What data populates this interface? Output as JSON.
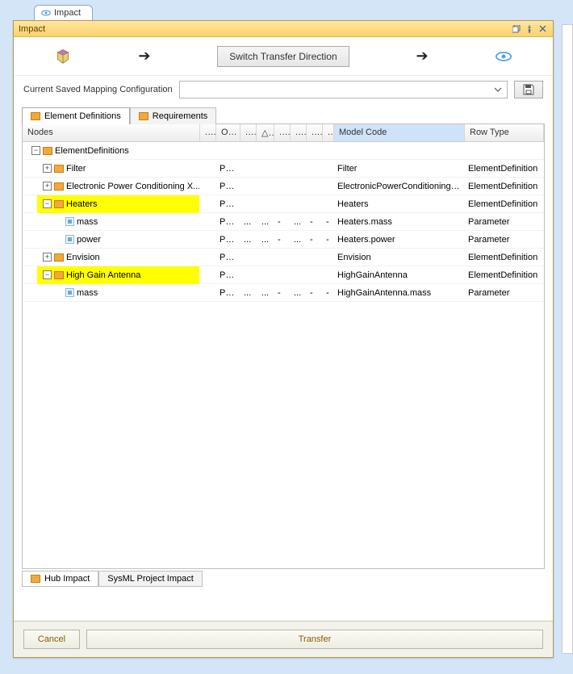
{
  "outer_tab": {
    "label": "Impact"
  },
  "window": {
    "title": "Impact",
    "switch_button": "Switch Transfer Direction",
    "config_label": "Current Saved Mapping Configuration",
    "config_value": ""
  },
  "inner_tabs": {
    "active": "Element Definitions",
    "t0": "Element Definitions",
    "t1": "Requirements"
  },
  "grid": {
    "headers": {
      "nodes": "Nodes",
      "n1": "...",
      "owner": "O...",
      "n2": "...",
      "sort": "△..",
      "n3": "...",
      "n4": "...",
      "n5": "...",
      "n6": "...",
      "model_code": "Model Code",
      "row_type": "Row Type"
    },
    "rows": [
      {
        "level": 0,
        "expander": "−",
        "icon": "pkg",
        "label": "ElementDefinitions",
        "owner": "",
        "dots": false,
        "model": "",
        "rowtype": "",
        "hl": false
      },
      {
        "level": 1,
        "expander": "+",
        "icon": "pkg",
        "label": "Filter",
        "owner": "PWR",
        "dots": false,
        "model": "Filter",
        "rowtype": "ElementDefinition",
        "hl": false
      },
      {
        "level": 1,
        "expander": "+",
        "icon": "pkg",
        "label": "Electronic Power Conditioning X...",
        "owner": "PWR",
        "dots": false,
        "model": "ElectronicPowerConditioningXb...",
        "rowtype": "ElementDefinition",
        "hl": false
      },
      {
        "level": 1,
        "expander": "−",
        "icon": "pkg",
        "label": "Heaters",
        "owner": "PWR",
        "dots": false,
        "model": "Heaters",
        "rowtype": "ElementDefinition",
        "hl": true
      },
      {
        "level": 2,
        "expander": "",
        "icon": "field",
        "label": "mass",
        "owner": "PWR",
        "dots": true,
        "model": "Heaters.mass",
        "rowtype": "Parameter",
        "hl": false
      },
      {
        "level": 2,
        "expander": "",
        "icon": "field",
        "label": "power",
        "owner": "PWR",
        "dots": true,
        "model": "Heaters.power",
        "rowtype": "Parameter",
        "hl": false
      },
      {
        "level": 1,
        "expander": "+",
        "icon": "pkg",
        "label": "Envision",
        "owner": "PWR",
        "dots": false,
        "model": "Envision",
        "rowtype": "ElementDefinition",
        "hl": false
      },
      {
        "level": 1,
        "expander": "−",
        "icon": "pkg",
        "label": "High Gain Antenna",
        "owner": "PWR",
        "dots": false,
        "model": "HighGainAntenna",
        "rowtype": "ElementDefinition",
        "hl": true
      },
      {
        "level": 2,
        "expander": "",
        "icon": "field",
        "label": "mass",
        "owner": "PWR",
        "dots": true,
        "model": "HighGainAntenna.mass",
        "rowtype": "Parameter",
        "hl": false
      }
    ]
  },
  "bottom_tabs": {
    "t0": "Hub Impact",
    "t1": "SysML Project Impact"
  },
  "footer": {
    "cancel": "Cancel",
    "transfer": "Transfer"
  },
  "colors": {
    "titlebar_top": "#ffe79e",
    "titlebar_bottom": "#fcd16b",
    "highlight": "#ffff00",
    "model_header": "#cfe3f7",
    "outer_bg": "#d4e5f7"
  }
}
